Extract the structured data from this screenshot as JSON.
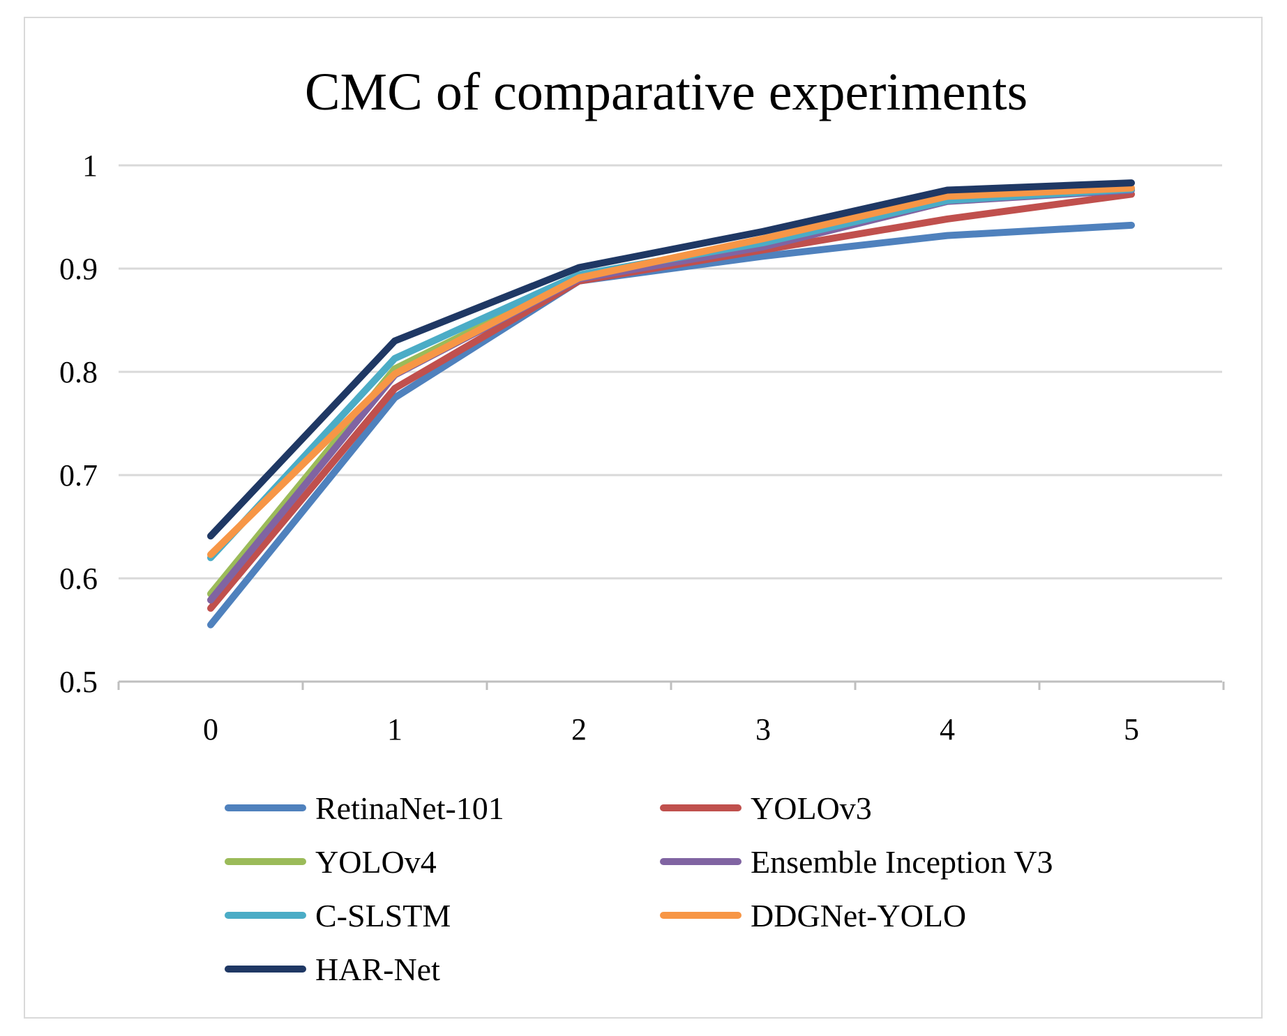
{
  "chart_data": {
    "type": "line",
    "title": "CMC of comparative experiments",
    "xlabel": "",
    "ylabel": "",
    "x": [
      0,
      1,
      2,
      3,
      4,
      5
    ],
    "ylim": [
      0.5,
      1
    ],
    "yticks": [
      0.5,
      0.6,
      0.7,
      0.8,
      0.9,
      1
    ],
    "ytick_labels": [
      "0.5",
      "0.6",
      "0.7",
      "0.8",
      "0.9",
      "1"
    ],
    "xtick_labels": [
      "0",
      "1",
      "2",
      "3",
      "4",
      "5"
    ],
    "grid": true,
    "legend_position": "bottom",
    "series": [
      {
        "name": "RetinaNet-101",
        "color": "#4f81bd",
        "values": [
          0.555,
          0.775,
          0.888,
          0.912,
          0.932,
          0.942
        ]
      },
      {
        "name": "YOLOv3",
        "color": "#c0504d",
        "values": [
          0.571,
          0.784,
          0.888,
          0.918,
          0.948,
          0.972
        ]
      },
      {
        "name": "YOLOv4",
        "color": "#9bbb59",
        "values": [
          0.585,
          0.803,
          0.891,
          0.922,
          0.966,
          0.976
        ]
      },
      {
        "name": "Ensemble Inception V3",
        "color": "#8064a2",
        "values": [
          0.579,
          0.797,
          0.89,
          0.921,
          0.965,
          0.976
        ]
      },
      {
        "name": "C-SLSTM",
        "color": "#4bacc6",
        "values": [
          0.62,
          0.813,
          0.894,
          0.925,
          0.966,
          0.977
        ]
      },
      {
        "name": "DDGNet-YOLO",
        "color": "#f79646",
        "values": [
          0.623,
          0.798,
          0.891,
          0.929,
          0.97,
          0.978
        ]
      },
      {
        "name": "HAR-Net",
        "color": "#1f3864",
        "values": [
          0.641,
          0.83,
          0.901,
          0.936,
          0.976,
          0.983
        ]
      }
    ]
  }
}
